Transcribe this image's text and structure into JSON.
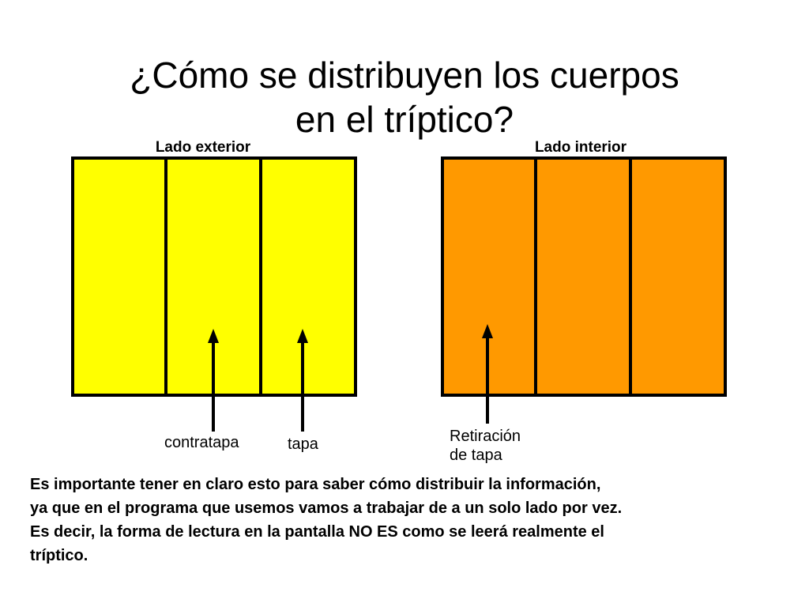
{
  "title": {
    "line1": "¿Cómo se distribuyen los cuerpos",
    "line2": "en el tríptico?"
  },
  "panels": {
    "exterior": {
      "label": "Lado exterior",
      "color": "#ffff00"
    },
    "interior": {
      "label": "Lado interior",
      "color": "#ff9900"
    }
  },
  "callouts": {
    "contratapa": "contratapa",
    "tapa": "tapa",
    "retiracion_line1": "Retiración",
    "retiracion_line2": "de tapa"
  },
  "note": {
    "line1": "Es importante tener en claro esto para saber cómo distribuir la información,",
    "line2": "ya que en el programa que usemos vamos a trabajar de a un solo lado por vez.",
    "line3": "Es decir, la forma de lectura en la pantalla NO ES como se leerá realmente el",
    "line4": "tríptico."
  }
}
